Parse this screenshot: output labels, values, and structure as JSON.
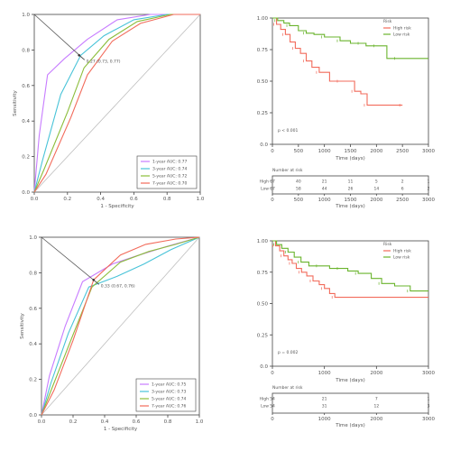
{
  "chart_data": [
    {
      "panel": "roc-top",
      "type": "line",
      "xlabel": "1 - Specificity",
      "ylabel": "Sensitivity",
      "xlim": [
        0,
        1
      ],
      "ylim": [
        0,
        1
      ],
      "xticks": [
        "0.0",
        "0.2",
        "0.4",
        "0.6",
        "0.8",
        "1.0"
      ],
      "yticks": [
        "0.0",
        "0.2",
        "0.4",
        "0.6",
        "0.8",
        "1.0"
      ],
      "annotation": "0.27 (0.73, 0.77)",
      "annotation_point": [
        0.27,
        0.77
      ],
      "legend_position": "bottom-right",
      "series": [
        {
          "name": "1-year AUC: 0.77",
          "color": "#c77cff",
          "points": [
            [
              0,
              0
            ],
            [
              0.03,
              0.32
            ],
            [
              0.08,
              0.66
            ],
            [
              0.18,
              0.75
            ],
            [
              0.32,
              0.86
            ],
            [
              0.5,
              0.97
            ],
            [
              0.7,
              1
            ],
            [
              1,
              1
            ]
          ]
        },
        {
          "name": "3-year AUC: 0.74",
          "color": "#48c3d8",
          "points": [
            [
              0,
              0
            ],
            [
              0.05,
              0.18
            ],
            [
              0.16,
              0.55
            ],
            [
              0.28,
              0.77
            ],
            [
              0.42,
              0.88
            ],
            [
              0.6,
              0.97
            ],
            [
              0.8,
              1
            ],
            [
              1,
              1
            ]
          ]
        },
        {
          "name": "5-year AUC: 0.72",
          "color": "#8bbd3a",
          "points": [
            [
              0,
              0
            ],
            [
              0.06,
              0.13
            ],
            [
              0.2,
              0.45
            ],
            [
              0.3,
              0.7
            ],
            [
              0.45,
              0.86
            ],
            [
              0.62,
              0.96
            ],
            [
              0.82,
              1
            ],
            [
              1,
              1
            ]
          ]
        },
        {
          "name": "7-year AUC: 0.70",
          "color": "#f26b5b",
          "points": [
            [
              0,
              0
            ],
            [
              0.07,
              0.1
            ],
            [
              0.22,
              0.42
            ],
            [
              0.32,
              0.66
            ],
            [
              0.47,
              0.85
            ],
            [
              0.64,
              0.95
            ],
            [
              0.84,
              1
            ],
            [
              1,
              1
            ]
          ]
        }
      ]
    },
    {
      "panel": "km-top",
      "type": "line",
      "xlabel": "Time (days)",
      "ylabel": "",
      "xlim": [
        0,
        3000
      ],
      "ylim": [
        0,
        1
      ],
      "xticks": [
        "0",
        "500",
        "1000",
        "1500",
        "2000",
        "2500",
        "3000"
      ],
      "yticks": [
        "0.0",
        "0.25",
        "0.50",
        "0.75",
        "1.00"
      ],
      "pvalue": "p < 0.001",
      "legend_title": "Risk",
      "series": [
        {
          "name": "High risk",
          "color": "#f26b5b",
          "steps": [
            [
              0,
              1
            ],
            [
              80,
              0.95
            ],
            [
              160,
              0.91
            ],
            [
              250,
              0.87
            ],
            [
              340,
              0.81
            ],
            [
              440,
              0.76
            ],
            [
              540,
              0.72
            ],
            [
              650,
              0.66
            ],
            [
              760,
              0.61
            ],
            [
              900,
              0.57
            ],
            [
              1100,
              0.5
            ],
            [
              1300,
              0.5
            ],
            [
              1500,
              0.5
            ],
            [
              1580,
              0.42
            ],
            [
              1700,
              0.4
            ],
            [
              1820,
              0.31
            ],
            [
              2100,
              0.31
            ],
            [
              2500,
              0.31
            ]
          ]
        },
        {
          "name": "Low risk",
          "color": "#6ab42d",
          "steps": [
            [
              0,
              1
            ],
            [
              100,
              0.98
            ],
            [
              220,
              0.96
            ],
            [
              330,
              0.94
            ],
            [
              500,
              0.9
            ],
            [
              650,
              0.88
            ],
            [
              800,
              0.87
            ],
            [
              1000,
              0.85
            ],
            [
              1150,
              0.85
            ],
            [
              1300,
              0.82
            ],
            [
              1500,
              0.8
            ],
            [
              1700,
              0.8
            ],
            [
              1800,
              0.78
            ],
            [
              2000,
              0.78
            ],
            [
              2200,
              0.68
            ],
            [
              2400,
              0.68
            ],
            [
              3000,
              0.68
            ]
          ]
        }
      ],
      "risk_table": {
        "title": "Number at risk",
        "xlabel": "Time (days)",
        "rows": [
          {
            "label": "High",
            "color": "#f26b5b",
            "values": [
              "67",
              "40",
              "21",
              "11",
              "5",
              "2",
              "1"
            ]
          },
          {
            "label": "Low",
            "color": "#6ab42d",
            "values": [
              "67",
              "58",
              "44",
              "26",
              "14",
              "6",
              "2"
            ]
          }
        ]
      }
    },
    {
      "panel": "roc-bottom",
      "type": "line",
      "xlabel": "1 - Specificity",
      "ylabel": "Sensitivity",
      "xlim": [
        0,
        1
      ],
      "ylim": [
        0,
        1
      ],
      "xticks": [
        "0.0",
        "0.2",
        "0.4",
        "0.6",
        "0.8",
        "1.0"
      ],
      "yticks": [
        "0.0",
        "0.2",
        "0.4",
        "0.6",
        "0.8",
        "1.0"
      ],
      "annotation": "0.33 (0.67, 0.76)",
      "annotation_point": [
        0.33,
        0.76
      ],
      "legend_position": "bottom-right",
      "series": [
        {
          "name": "1-year AUC: 0.75",
          "color": "#c77cff",
          "points": [
            [
              0,
              0
            ],
            [
              0.05,
              0.22
            ],
            [
              0.15,
              0.5
            ],
            [
              0.26,
              0.75
            ],
            [
              0.45,
              0.85
            ],
            [
              0.62,
              0.9
            ],
            [
              0.8,
              0.95
            ],
            [
              1,
              1
            ]
          ]
        },
        {
          "name": "3-year AUC: 0.73",
          "color": "#48c3d8",
          "points": [
            [
              0,
              0
            ],
            [
              0.06,
              0.18
            ],
            [
              0.17,
              0.46
            ],
            [
              0.3,
              0.72
            ],
            [
              0.48,
              0.78
            ],
            [
              0.65,
              0.85
            ],
            [
              0.82,
              0.93
            ],
            [
              1,
              1
            ]
          ]
        },
        {
          "name": "5-year AUC: 0.74",
          "color": "#8bbd3a",
          "points": [
            [
              0,
              0
            ],
            [
              0.07,
              0.16
            ],
            [
              0.19,
              0.43
            ],
            [
              0.32,
              0.72
            ],
            [
              0.5,
              0.86
            ],
            [
              0.68,
              0.92
            ],
            [
              0.85,
              0.96
            ],
            [
              1,
              1
            ]
          ]
        },
        {
          "name": "7-year AUC: 0.76",
          "color": "#f26b5b",
          "points": [
            [
              0,
              0
            ],
            [
              0.08,
              0.14
            ],
            [
              0.2,
              0.42
            ],
            [
              0.33,
              0.76
            ],
            [
              0.5,
              0.9
            ],
            [
              0.66,
              0.96
            ],
            [
              0.85,
              0.99
            ],
            [
              1,
              1
            ]
          ]
        }
      ]
    },
    {
      "panel": "km-bottom",
      "type": "line",
      "xlabel": "Time (days)",
      "ylabel": "",
      "xlim": [
        0,
        3000
      ],
      "ylim": [
        0,
        1
      ],
      "xticks": [
        "0",
        "1000",
        "2000",
        "3000"
      ],
      "yticks": [
        "0.0",
        "0.25",
        "0.50",
        "0.75",
        "1.00"
      ],
      "pvalue": "p = 0.002",
      "legend_title": "Risk",
      "series": [
        {
          "name": "High risk",
          "color": "#f26b5b",
          "steps": [
            [
              0,
              1
            ],
            [
              60,
              0.96
            ],
            [
              140,
              0.92
            ],
            [
              220,
              0.88
            ],
            [
              300,
              0.85
            ],
            [
              380,
              0.82
            ],
            [
              460,
              0.78
            ],
            [
              560,
              0.75
            ],
            [
              660,
              0.72
            ],
            [
              780,
              0.68
            ],
            [
              900,
              0.65
            ],
            [
              1000,
              0.62
            ],
            [
              1100,
              0.58
            ],
            [
              1200,
              0.55
            ],
            [
              3000,
              0.55
            ]
          ]
        },
        {
          "name": "Low risk",
          "color": "#6ab42d",
          "steps": [
            [
              0,
              1
            ],
            [
              80,
              0.97
            ],
            [
              180,
              0.94
            ],
            [
              300,
              0.91
            ],
            [
              420,
              0.87
            ],
            [
              550,
              0.83
            ],
            [
              700,
              0.8
            ],
            [
              900,
              0.8
            ],
            [
              1100,
              0.78
            ],
            [
              1300,
              0.78
            ],
            [
              1450,
              0.76
            ],
            [
              1650,
              0.74
            ],
            [
              1900,
              0.7
            ],
            [
              2100,
              0.66
            ],
            [
              2350,
              0.64
            ],
            [
              2650,
              0.6
            ],
            [
              3000,
              0.6
            ]
          ]
        }
      ],
      "risk_table": {
        "title": "Number at risk",
        "xlabel": "Time (days)",
        "rows": [
          {
            "label": "High",
            "color": "#f26b5b",
            "values": [
              "54",
              "21",
              "7",
              "1"
            ]
          },
          {
            "label": "Low",
            "color": "#6ab42d",
            "values": [
              "54",
              "31",
              "12",
              "3"
            ]
          }
        ]
      }
    }
  ]
}
